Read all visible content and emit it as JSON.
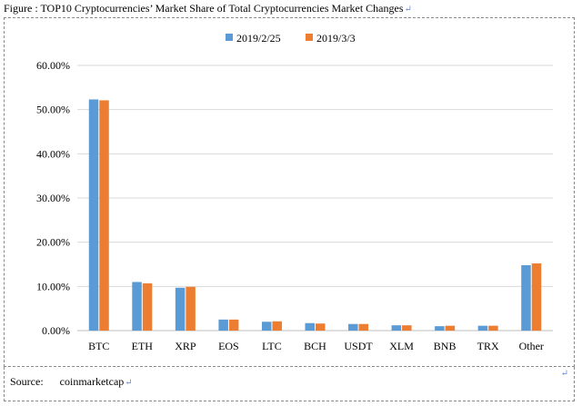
{
  "figure": {
    "title": "Figure : TOP10 Cryptocurrencies’ Market Share of Total Cryptocurrencies Market Changes",
    "para_mark": "↵"
  },
  "source": {
    "label": "Source:",
    "value": "coinmarketcap",
    "para_mark": "↵"
  },
  "colors": {
    "series1": "#5b9bd5",
    "series2": "#ed7d31",
    "grid": "#d9d9d9",
    "axis": "#bfbfbf"
  },
  "chart_data": {
    "type": "bar",
    "categories": [
      "BTC",
      "ETH",
      "XRP",
      "EOS",
      "LTC",
      "BCH",
      "USDT",
      "XLM",
      "BNB",
      "TRX",
      "Other"
    ],
    "series": [
      {
        "name": "2019/2/25",
        "values": [
          52.3,
          11.0,
          9.7,
          2.5,
          2.0,
          1.7,
          1.5,
          1.2,
          1.0,
          1.1,
          14.8
        ]
      },
      {
        "name": "2019/3/3",
        "values": [
          52.1,
          10.7,
          9.9,
          2.5,
          2.1,
          1.6,
          1.5,
          1.2,
          1.1,
          1.1,
          15.2
        ]
      }
    ],
    "yticks": [
      "0.00%",
      "10.00%",
      "20.00%",
      "30.00%",
      "40.00%",
      "50.00%",
      "60.00%"
    ],
    "ylim": [
      0,
      60
    ],
    "grid": true,
    "legend_position": "top-center"
  }
}
